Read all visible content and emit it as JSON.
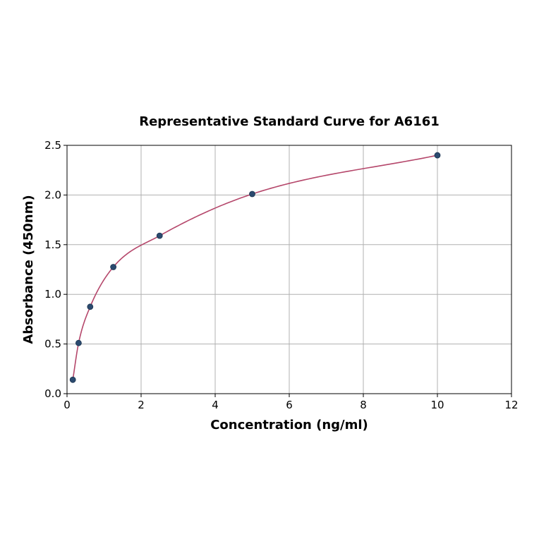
{
  "chart_data": {
    "type": "scatter",
    "title": "Representative Standard Curve for A6161",
    "xlabel": "Concentration (ng/ml)",
    "ylabel": "Absorbance (450nm)",
    "xlim": [
      0,
      12
    ],
    "ylim": [
      0,
      2.5
    ],
    "x_ticks": [
      "0",
      "2",
      "4",
      "6",
      "8",
      "10",
      "12"
    ],
    "y_ticks": [
      "0.0",
      "0.5",
      "1.0",
      "1.5",
      "2.0",
      "2.5"
    ],
    "grid": true,
    "series": [
      {
        "points": [
          {
            "x": 0.156,
            "y": 0.14
          },
          {
            "x": 0.3125,
            "y": 0.51
          },
          {
            "x": 0.625,
            "y": 0.875
          },
          {
            "x": 1.25,
            "y": 1.275
          },
          {
            "x": 2.5,
            "y": 1.59
          },
          {
            "x": 5.0,
            "y": 2.01
          },
          {
            "x": 10.0,
            "y": 2.4
          }
        ],
        "marker_color": "#2b4a6f",
        "fit_color": "#b5476b"
      }
    ]
  }
}
